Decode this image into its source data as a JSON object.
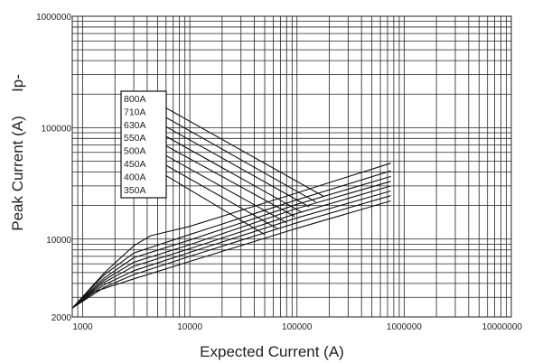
{
  "chart_data": {
    "type": "line",
    "x_scale": "log",
    "y_scale": "log",
    "xlim": [
      800,
      10000000
    ],
    "ylim": [
      2000,
      1000000
    ],
    "xlabel": "Expected Current (A)",
    "ylabel_main": "Peak Current (A)",
    "ylabel_extra": "Ip-",
    "grid": true,
    "x_tick_labels": [
      "1000",
      "10000",
      "100000",
      "1000000",
      "10000000"
    ],
    "x_tick_values": [
      1000,
      10000,
      100000,
      1000000,
      10000000
    ],
    "y_tick_labels": [
      "2000",
      "10000",
      "100000",
      "1000000"
    ],
    "y_tick_values": [
      2000,
      10000,
      100000,
      1000000
    ],
    "legend_labels": [
      "800A",
      "710A",
      "630A",
      "550A",
      "500A",
      "450A",
      "400A",
      "350A"
    ],
    "let_through_series": [
      {
        "name": "800A",
        "x": [
          4300,
          180000
        ],
        "y": [
          180000,
          24000
        ]
      },
      {
        "name": "710A",
        "x": [
          4300,
          150000
        ],
        "y": [
          148000,
          21500
        ]
      },
      {
        "name": "630A",
        "x": [
          4300,
          130000
        ],
        "y": [
          122000,
          19500
        ]
      },
      {
        "name": "550A",
        "x": [
          4300,
          110000
        ],
        "y": [
          100000,
          17500
        ]
      },
      {
        "name": "500A",
        "x": [
          4300,
          95000
        ],
        "y": [
          82000,
          16000
        ]
      },
      {
        "name": "450A",
        "x": [
          4300,
          80000
        ],
        "y": [
          67000,
          14000
        ]
      },
      {
        "name": "400A",
        "x": [
          4300,
          65000
        ],
        "y": [
          55000,
          12500
        ]
      },
      {
        "name": "350A",
        "x": [
          4300,
          50000
        ],
        "y": [
          45000,
          11000
        ]
      }
    ],
    "asymmetric_peak_curves": [
      {
        "x": [
          800,
          1600,
          3000,
          4300,
          10000,
          100000,
          750000
        ],
        "y": [
          2400,
          5000,
          8700,
          10700,
          13000,
          26000,
          48000
        ]
      },
      {
        "x": [
          800,
          1600,
          3000,
          10000,
          100000,
          750000
        ],
        "y": [
          2400,
          4800,
          7500,
          11000,
          22500,
          41000
        ]
      },
      {
        "x": [
          800,
          1600,
          3000,
          10000,
          100000,
          750000
        ],
        "y": [
          2400,
          4500,
          6800,
          9800,
          20500,
          36500
        ]
      },
      {
        "x": [
          800,
          1600,
          3000,
          10000,
          100000,
          750000
        ],
        "y": [
          2400,
          4300,
          6200,
          8900,
          18800,
          33000
        ]
      },
      {
        "x": [
          800,
          1600,
          3000,
          10000,
          100000,
          750000
        ],
        "y": [
          2400,
          4100,
          5700,
          8200,
          17000,
          30000
        ]
      },
      {
        "x": [
          800,
          1600,
          3000,
          10000,
          100000,
          750000
        ],
        "y": [
          2400,
          3900,
          5200,
          7600,
          15500,
          27000
        ]
      },
      {
        "x": [
          800,
          1600,
          3000,
          10000,
          100000,
          750000
        ],
        "y": [
          2400,
          3700,
          4800,
          7000,
          14000,
          24500
        ]
      },
      {
        "x": [
          800,
          1200,
          3000,
          10000,
          100000,
          750000
        ],
        "y": [
          2400,
          3300,
          4400,
          6300,
          12500,
          22000
        ]
      }
    ]
  }
}
